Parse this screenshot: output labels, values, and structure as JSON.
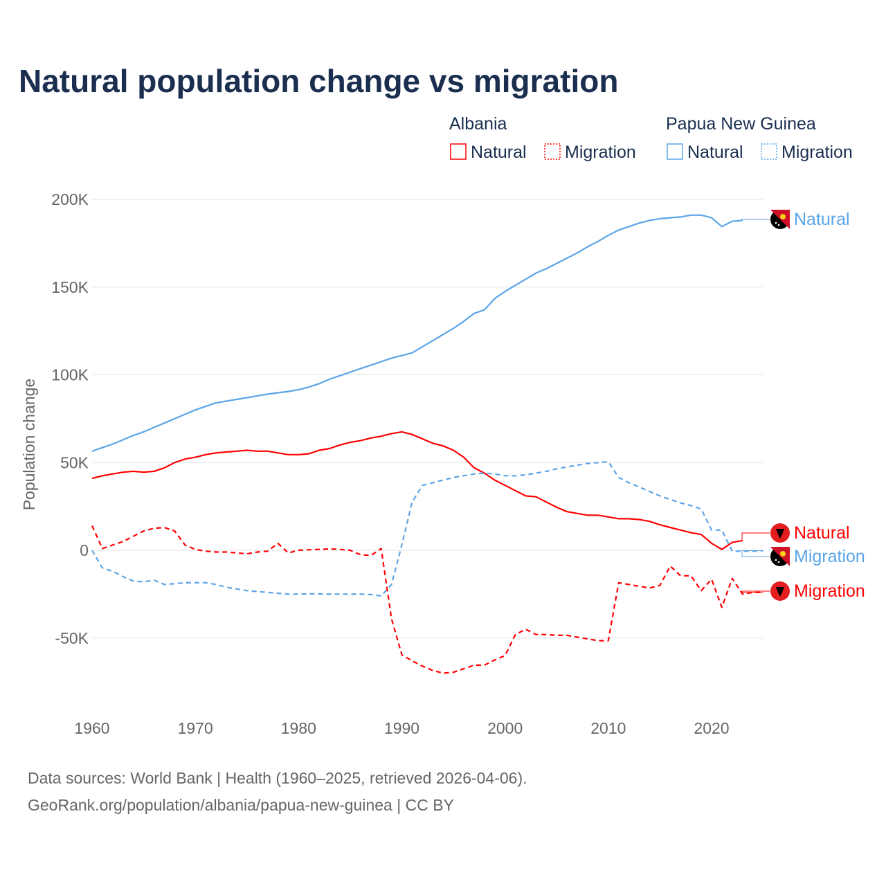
{
  "chart_data": {
    "type": "line",
    "title": "Natural population change vs migration",
    "ylabel": "Population change",
    "xlabel": "",
    "xlim": [
      1960,
      2025
    ],
    "ylim": [
      -80000,
      200000
    ],
    "x_ticks": [
      "1960",
      "1970",
      "1980",
      "1990",
      "2000",
      "2010",
      "2020"
    ],
    "y_ticks": [
      {
        "v": 200000,
        "label": "200K"
      },
      {
        "v": 150000,
        "label": "150K"
      },
      {
        "v": 100000,
        "label": "100K"
      },
      {
        "v": 50000,
        "label": "50K"
      },
      {
        "v": 0,
        "label": "0"
      },
      {
        "v": -50000,
        "label": "-50K"
      }
    ],
    "grid": true,
    "legend": {
      "groups": [
        {
          "title": "Albania",
          "items": [
            {
              "label": "Natural",
              "color": "#ff0000",
              "style": "solid"
            },
            {
              "label": "Migration",
              "color": "#ff0000",
              "style": "dotted"
            }
          ]
        },
        {
          "title": "Papua New Guinea",
          "items": [
            {
              "label": "Natural",
              "color": "#5ba4e8",
              "style": "solid"
            },
            {
              "label": "Migration",
              "color": "#5ba4e8",
              "style": "dotted"
            }
          ]
        }
      ],
      "placement": "top-right"
    },
    "series": [
      {
        "name": "Papua New Guinea Natural",
        "end_label": "Natural",
        "color": "#5ba4e8",
        "dash": false,
        "start": 1960,
        "values": [
          56.5,
          58.5,
          60.5,
          63,
          65.5,
          67.5,
          70,
          72.5,
          75,
          77.5,
          80,
          82,
          84,
          85,
          86,
          87,
          88,
          89,
          89.8,
          90.5,
          91.5,
          93,
          95,
          97.5,
          99.5,
          101.5,
          103.5,
          105.5,
          107.5,
          109.5,
          111,
          112.5,
          116,
          119.5,
          123,
          126.5,
          130.5,
          135,
          137,
          143.5,
          147.5,
          151,
          154.5,
          158,
          160.5,
          163.5,
          166.5,
          169.5,
          173,
          176,
          179.5,
          182.5,
          184.5,
          186.5,
          188,
          189,
          189.5,
          190,
          191,
          191,
          189.5,
          184.5,
          187.5,
          188
        ]
      },
      {
        "name": "Albania Natural",
        "end_label": "Natural",
        "color": "#ff0000",
        "dash": false,
        "start": 1960,
        "values": [
          41,
          42.5,
          43.5,
          44.5,
          45,
          44.5,
          45,
          47,
          50,
          52,
          53,
          54.5,
          55.5,
          56,
          56.5,
          57,
          56.5,
          56.5,
          55.5,
          54.5,
          54.5,
          55,
          57,
          58,
          60,
          61.5,
          62.5,
          64,
          65,
          66.5,
          67.5,
          66,
          63.5,
          61,
          59.5,
          57,
          53,
          47,
          44,
          40,
          37,
          34,
          31,
          30.5,
          27.5,
          24.5,
          22,
          21,
          20,
          20,
          19,
          18,
          18,
          17.5,
          16.5,
          14.5,
          13,
          11.5,
          10,
          9,
          4,
          0.5,
          4.5,
          5.5
        ]
      },
      {
        "name": "Papua New Guinea Migration",
        "end_label": "Migration",
        "color": "#5ba4e8",
        "dash": true,
        "start": 1960,
        "values": [
          0,
          -10,
          -12,
          -15,
          -17.5,
          -18,
          -17,
          -19.5,
          -19,
          -18.5,
          -18.5,
          -18.5,
          -19.5,
          -21,
          -22,
          -23,
          -23.5,
          -24,
          -24.5,
          -25,
          -25,
          -24.8,
          -24.8,
          -25,
          -25,
          -25,
          -25,
          -25.2,
          -26,
          -19.5,
          3,
          27.5,
          37,
          38.5,
          40,
          41.5,
          42.5,
          43.5,
          44,
          43.5,
          42.5,
          42.5,
          43,
          44,
          45,
          46.5,
          47.5,
          48.5,
          49.5,
          50,
          50.5,
          41.5,
          38.5,
          36,
          33.5,
          31,
          29,
          27,
          25.5,
          23.5,
          11.5,
          11.5,
          -0.5,
          -0.5,
          -0.5,
          -0.2
        ]
      },
      {
        "name": "Albania Migration",
        "end_label": "Migration",
        "color": "#ff0000",
        "dash": true,
        "start": 1960,
        "values": [
          14,
          1,
          3,
          5,
          8,
          11,
          12.5,
          13,
          11,
          3,
          0.5,
          -0.5,
          -1,
          -1,
          -1.5,
          -2,
          -1,
          -0.5,
          4,
          -1.5,
          0,
          0.3,
          0.5,
          0.8,
          0.5,
          0,
          -2.5,
          -3,
          1,
          -39,
          -59.5,
          -63,
          -66,
          -68.5,
          -70,
          -69.5,
          -67.5,
          -65.5,
          -65.5,
          -62.5,
          -60,
          -48,
          -45,
          -48,
          -48,
          -48.5,
          -48.5,
          -49.5,
          -50.5,
          -51.5,
          -51.5,
          -18.5,
          -19.5,
          -20.5,
          -21.5,
          -20,
          -9,
          -14.5,
          -14.5,
          -23,
          -16.5,
          -32.5,
          -16,
          -25,
          -24,
          -24
        ]
      }
    ],
    "value_unit": "thousands"
  },
  "footer": {
    "line1": "Data sources: World Bank | Health (1960–2025, retrieved 2026-04-06).",
    "line2": "GeoRank.org/population/albania/papua-new-guinea | CC BY"
  }
}
